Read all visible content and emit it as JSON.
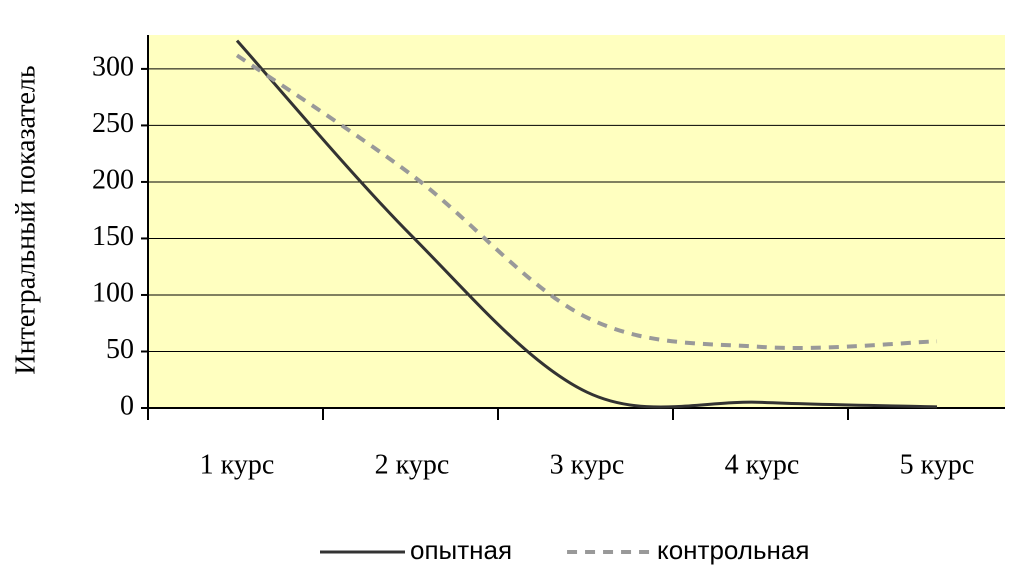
{
  "chart_data": {
    "type": "line",
    "y_label": "Интегральный показатель",
    "categories": [
      "1 курс",
      "2 курс",
      "3 курс",
      "4 курс",
      "5 курс"
    ],
    "series": [
      {
        "name": "опытная",
        "color": "#333333",
        "style": "solid",
        "values": [
          325,
          152,
          14,
          5,
          1
        ]
      },
      {
        "name": "контрольная",
        "color": "#999999",
        "style": "dashed",
        "values": [
          312,
          206,
          80,
          54,
          59
        ]
      }
    ],
    "ylim": [
      0,
      330
    ],
    "yticks": [
      0,
      50,
      100,
      150,
      200,
      250,
      300
    ],
    "grid": true,
    "background": "#ffffc0",
    "legend": "bottom"
  }
}
